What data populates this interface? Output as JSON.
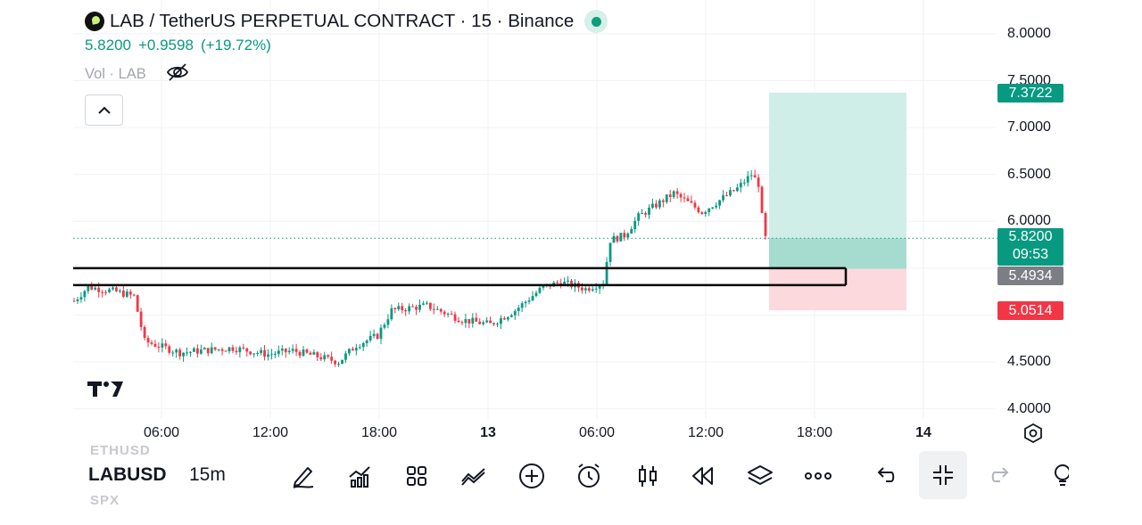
{
  "legend": {
    "title": "LAB / TetherUS PERPETUAL CONTRACT · 15 · Binance",
    "price": "5.8200",
    "change": "+0.9598",
    "change_pct": "(+19.72%)",
    "volume_label": "Vol · LAB",
    "colors": {
      "up": "#089981",
      "down": "#f23645"
    }
  },
  "icons": {
    "collapse": "chevron-up-icon",
    "hide_volume": "eye-off-icon",
    "logo": "tradingview-logo",
    "settings": "settings-icon"
  },
  "toolbar": {
    "symbol": "LABUSD",
    "interval": "15m",
    "ghost_above": "ETHUSD",
    "ghost_below": "SPX",
    "tools": [
      "draw-icon",
      "indicators-icon",
      "templates-icon",
      "compare-icon",
      "add-icon",
      "alert-icon",
      "chart-type-icon",
      "replay-icon",
      "layers-icon",
      "more-icon",
      "undo-icon",
      "collapse-icon",
      "redo-icon",
      "ideas-icon"
    ]
  },
  "chart_data": {
    "type": "candlestick",
    "x_ticks": [
      "06:00",
      "12:00",
      "18:00",
      "13",
      "06:00",
      "12:00",
      "18:00",
      "14"
    ],
    "y_ticks": [
      "8.0000",
      "7.5000",
      "7.0000",
      "6.5000",
      "6.0000",
      "4.5000",
      "4.0000"
    ],
    "ylim": [
      4.0,
      8.0
    ],
    "price_labels": {
      "target": "7.3722",
      "last": "5.8200",
      "countdown": "09:53",
      "entry": "5.4934",
      "stop": "5.0514"
    },
    "position": {
      "entry": 5.4934,
      "target": 7.3722,
      "stop": 5.0514
    },
    "zone": {
      "top": 5.5,
      "bottom": 5.32
    },
    "series_anchors": [
      [
        0,
        5.15
      ],
      [
        4,
        5.3
      ],
      [
        12,
        5.25
      ],
      [
        17,
        5.2
      ],
      [
        20,
        4.72
      ],
      [
        30,
        4.6
      ],
      [
        45,
        4.65
      ],
      [
        55,
        4.58
      ],
      [
        62,
        4.62
      ],
      [
        70,
        4.55
      ],
      [
        75,
        4.5
      ],
      [
        80,
        4.68
      ],
      [
        86,
        4.78
      ],
      [
        90,
        5.05
      ],
      [
        100,
        5.1
      ],
      [
        110,
        4.95
      ],
      [
        118,
        4.9
      ],
      [
        125,
        5.05
      ],
      [
        133,
        5.3
      ],
      [
        138,
        5.35
      ],
      [
        145,
        5.28
      ],
      [
        150,
        5.35
      ],
      [
        152,
        5.8
      ],
      [
        156,
        5.85
      ],
      [
        160,
        6.05
      ],
      [
        170,
        6.3
      ],
      [
        178,
        6.1
      ],
      [
        188,
        6.35
      ],
      [
        192,
        6.5
      ],
      [
        194,
        6.4
      ],
      [
        195,
        6.05
      ],
      [
        196,
        5.82
      ]
    ]
  }
}
